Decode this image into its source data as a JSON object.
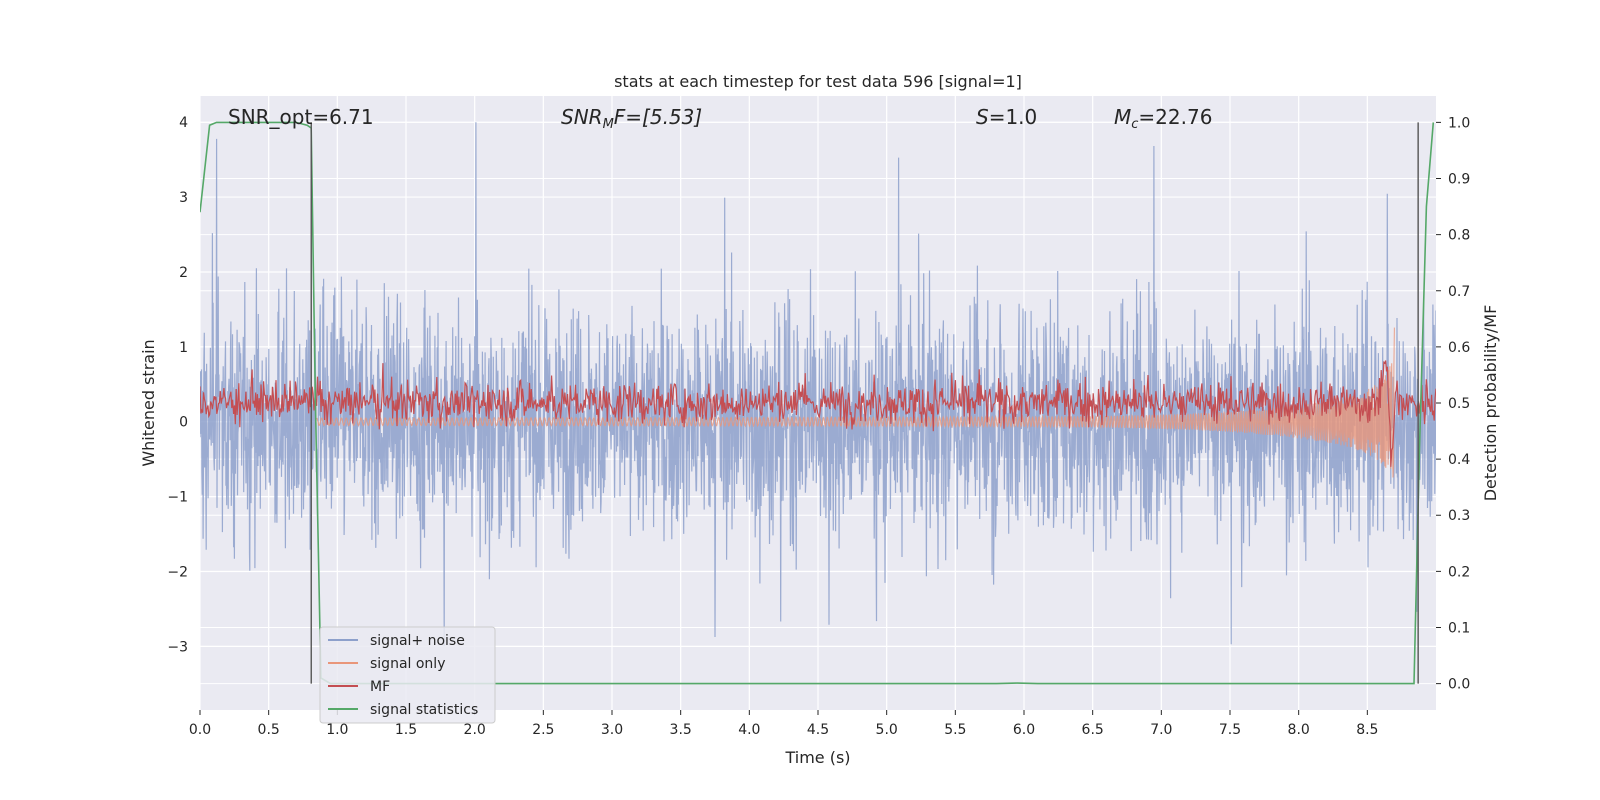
{
  "chart_data": {
    "type": "line",
    "title": "stats at each timestep for test data 596 [signal=1]",
    "xlabel": "Time (s)",
    "ylabel_left": "Whitened strain",
    "ylabel_right": "Detection probability/MF",
    "xlim": [
      0.0,
      9.0
    ],
    "ylim_left": [
      -3.85,
      4.35
    ],
    "ylim_right": [
      -0.047,
      1.047
    ],
    "x_ticks": [
      "0.0",
      "0.5",
      "1.0",
      "1.5",
      "2.0",
      "2.5",
      "3.0",
      "3.5",
      "4.0",
      "4.5",
      "5.0",
      "5.5",
      "6.0",
      "6.5",
      "7.0",
      "7.5",
      "8.0",
      "8.5"
    ],
    "y_ticks_left": [
      "−3",
      "−2",
      "−1",
      "0",
      "1",
      "2",
      "3",
      "4"
    ],
    "y_ticks_right": [
      "0.0",
      "0.1",
      "0.2",
      "0.3",
      "0.4",
      "0.5",
      "0.6",
      "0.7",
      "0.8",
      "0.9",
      "1.0"
    ],
    "grid": true,
    "legend_position": "lower-left",
    "annotations": {
      "snr_opt": "SNR_opt=6.71",
      "snr_mf": "SNR",
      "snr_mf_sub": "M",
      "snr_mf_tail": "F=[5.53]",
      "s": "S",
      "s_tail": "=1.0",
      "mc": "M",
      "mc_sub": "c",
      "mc_tail": "=22.76"
    },
    "vlines": [
      0.81,
      8.87
    ],
    "series": [
      {
        "name": "signal+ noise",
        "axis": "left",
        "color": "#8da0cb",
        "description_range": [
          -3.5,
          4.0
        ]
      },
      {
        "name": "signal only",
        "axis": "left",
        "color": "#e9967a",
        "chirp_end": 8.7
      },
      {
        "name": "MF",
        "axis": "right",
        "color": "#c44e52",
        "baseline": 0.5
      },
      {
        "name": "signal statistics",
        "axis": "right",
        "color": "#55a868",
        "x": [
          0.0,
          0.07,
          0.12,
          0.3,
          0.5,
          0.7,
          0.78,
          0.81,
          0.84,
          0.88,
          0.95,
          2.0,
          4.0,
          5.8,
          5.95,
          6.1,
          8.0,
          8.84,
          8.88,
          8.93,
          8.98
        ],
        "y": [
          0.84,
          0.995,
          1.0,
          1.0,
          1.0,
          1.0,
          0.995,
          0.99,
          0.5,
          0.01,
          0.0,
          0.0,
          0.0,
          0.0,
          0.001,
          0.0,
          0.0,
          0.0,
          0.42,
          0.85,
          1.0
        ]
      }
    ]
  },
  "colors": {
    "plot_bg": "#eaeaf2",
    "grid": "#ffffff",
    "vline": "#555555"
  }
}
